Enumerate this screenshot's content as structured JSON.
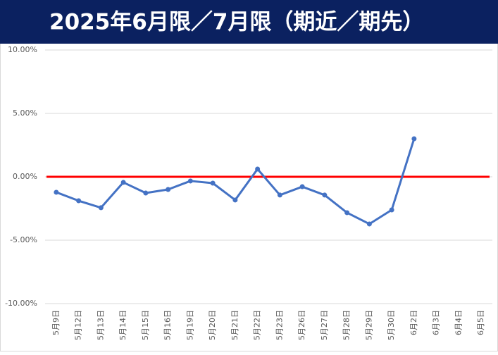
{
  "chart_data": {
    "type": "line",
    "title": "2025年6月限／7月限（期近／期先）",
    "categories": [
      "5月9日",
      "5月12日",
      "5月13日",
      "5月14日",
      "5月15日",
      "5月16日",
      "5月19日",
      "5月20日",
      "5月21日",
      "5月22日",
      "5月23日",
      "5月26日",
      "5月27日",
      "5月28日",
      "5月29日",
      "5月30日",
      "6月2日",
      "6月3日",
      "6月4日",
      "6月5日"
    ],
    "series": [
      {
        "color": "#4472c4",
        "values": [
          -1.22,
          -1.89,
          -2.44,
          -0.44,
          -1.28,
          -1.0,
          -0.33,
          -0.5,
          -1.83,
          0.61,
          -1.44,
          -0.78,
          -1.44,
          -2.83,
          -3.72,
          -2.61,
          3.0,
          null,
          null,
          null
        ]
      }
    ],
    "ylim": [
      -10,
      10
    ],
    "yticks": [
      {
        "value": -10,
        "label": "-10.00%"
      },
      {
        "value": -5,
        "label": "-5.00%"
      },
      {
        "value": 0,
        "label": "0.00%"
      },
      {
        "value": 5,
        "label": "5.00%"
      },
      {
        "value": 10,
        "label": "10.00%"
      }
    ],
    "grid": true,
    "reference_line": {
      "value": 0,
      "color": "#ff0000"
    }
  }
}
